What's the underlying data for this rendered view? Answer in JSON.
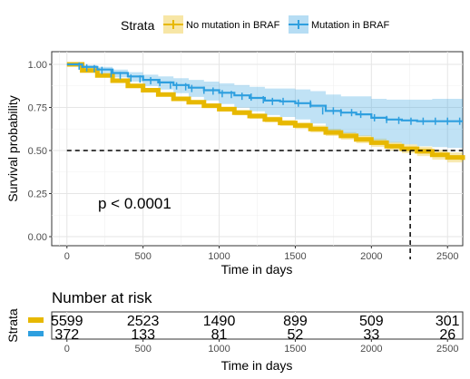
{
  "chart_data": [
    {
      "type": "line",
      "title": "",
      "xlabel": "Time in days",
      "ylabel": "Survival probability",
      "xlim": [
        -100,
        2600
      ],
      "ylim": [
        0,
        1
      ],
      "xticks": [
        0,
        500,
        1000,
        1500,
        2000,
        2500
      ],
      "yticks": [
        0,
        0.25,
        0.5,
        0.75,
        1
      ],
      "ytick_labels": [
        "0.00",
        "0.25",
        "0.50",
        "0.75",
        "1.00"
      ],
      "grid": true,
      "legend": {
        "title": "Strata",
        "position": "top"
      },
      "annotation": "p < 0.0001",
      "median_line": {
        "y": 0.5,
        "x_end": 2600,
        "median_x": 2255
      },
      "series": [
        {
          "name": "No mutation in BRAF",
          "color": "#E7B800",
          "x": [
            0,
            100,
            200,
            300,
            400,
            500,
            600,
            700,
            800,
            900,
            1000,
            1100,
            1200,
            1300,
            1400,
            1500,
            1600,
            1700,
            1800,
            1900,
            2000,
            2100,
            2200,
            2300,
            2400,
            2500,
            2600
          ],
          "y": [
            1.0,
            0.965,
            0.935,
            0.905,
            0.875,
            0.85,
            0.825,
            0.8,
            0.78,
            0.76,
            0.74,
            0.72,
            0.7,
            0.68,
            0.66,
            0.645,
            0.625,
            0.605,
            0.585,
            0.565,
            0.545,
            0.525,
            0.51,
            0.495,
            0.475,
            0.46,
            0.445
          ],
          "ci_lower": [
            1.0,
            0.96,
            0.929,
            0.898,
            0.867,
            0.841,
            0.815,
            0.789,
            0.768,
            0.747,
            0.726,
            0.705,
            0.684,
            0.663,
            0.642,
            0.626,
            0.605,
            0.584,
            0.563,
            0.542,
            0.521,
            0.5,
            0.484,
            0.468,
            0.447,
            0.431,
            0.415
          ],
          "ci_upper": [
            1.0,
            0.97,
            0.941,
            0.912,
            0.883,
            0.859,
            0.835,
            0.811,
            0.792,
            0.773,
            0.754,
            0.735,
            0.716,
            0.697,
            0.678,
            0.664,
            0.645,
            0.626,
            0.607,
            0.588,
            0.569,
            0.55,
            0.536,
            0.522,
            0.503,
            0.489,
            0.475
          ],
          "censor_x": [],
          "censor_y": []
        },
        {
          "name": "Mutation in BRAF",
          "color": "#2E9FDF",
          "x": [
            0,
            100,
            200,
            300,
            400,
            500,
            600,
            700,
            800,
            900,
            1000,
            1100,
            1200,
            1300,
            1400,
            1500,
            1600,
            1700,
            1800,
            1900,
            2000,
            2100,
            2200,
            2300,
            2400,
            2500,
            2600
          ],
          "y": [
            1.0,
            0.985,
            0.97,
            0.95,
            0.93,
            0.91,
            0.895,
            0.88,
            0.865,
            0.85,
            0.835,
            0.82,
            0.805,
            0.79,
            0.785,
            0.775,
            0.76,
            0.73,
            0.72,
            0.71,
            0.69,
            0.68,
            0.675,
            0.67,
            0.67,
            0.67,
            0.67
          ],
          "ci_lower": [
            1.0,
            0.972,
            0.95,
            0.925,
            0.9,
            0.874,
            0.854,
            0.833,
            0.811,
            0.79,
            0.77,
            0.749,
            0.728,
            0.706,
            0.695,
            0.68,
            0.657,
            0.617,
            0.6,
            0.585,
            0.56,
            0.545,
            0.535,
            0.525,
            0.52,
            0.515,
            0.515
          ],
          "ci_upper": [
            1.0,
            0.995,
            0.985,
            0.97,
            0.955,
            0.94,
            0.93,
            0.92,
            0.91,
            0.9,
            0.89,
            0.88,
            0.87,
            0.86,
            0.86,
            0.855,
            0.845,
            0.825,
            0.815,
            0.815,
            0.8,
            0.795,
            0.795,
            0.795,
            0.8,
            0.8,
            0.8
          ],
          "censor_x": [
            80,
            130,
            180,
            230,
            290,
            350,
            420,
            480,
            550,
            610,
            680,
            720,
            780,
            820,
            900,
            960,
            1020,
            1080,
            1150,
            1210,
            1290,
            1350,
            1420,
            1520,
            1600,
            1680,
            1750,
            1800,
            1870,
            1930,
            2020,
            2100,
            2180,
            2260,
            2340,
            2420,
            2500,
            2580
          ],
          "censor_y": [
            0.99,
            0.98,
            0.975,
            0.965,
            0.945,
            0.935,
            0.92,
            0.915,
            0.905,
            0.895,
            0.88,
            0.875,
            0.87,
            0.86,
            0.85,
            0.845,
            0.83,
            0.825,
            0.815,
            0.81,
            0.795,
            0.785,
            0.785,
            0.775,
            0.77,
            0.73,
            0.73,
            0.72,
            0.72,
            0.71,
            0.69,
            0.68,
            0.675,
            0.67,
            0.67,
            0.67,
            0.67,
            0.67
          ]
        }
      ]
    },
    {
      "type": "table",
      "title": "Number at risk",
      "xlabel": "Time in days",
      "ylabel": "Strata",
      "xticks": [
        0,
        500,
        1000,
        1500,
        2000,
        2500
      ],
      "columns": [
        0,
        500,
        1000,
        1500,
        2000,
        2500
      ],
      "rows": [
        {
          "name": "No mutation in BRAF",
          "color": "#E7B800",
          "values": [
            5599,
            2523,
            1490,
            899,
            509,
            301
          ]
        },
        {
          "name": "Mutation in BRAF",
          "color": "#2E9FDF",
          "values": [
            372,
            133,
            81,
            52,
            33,
            26
          ]
        }
      ]
    }
  ]
}
